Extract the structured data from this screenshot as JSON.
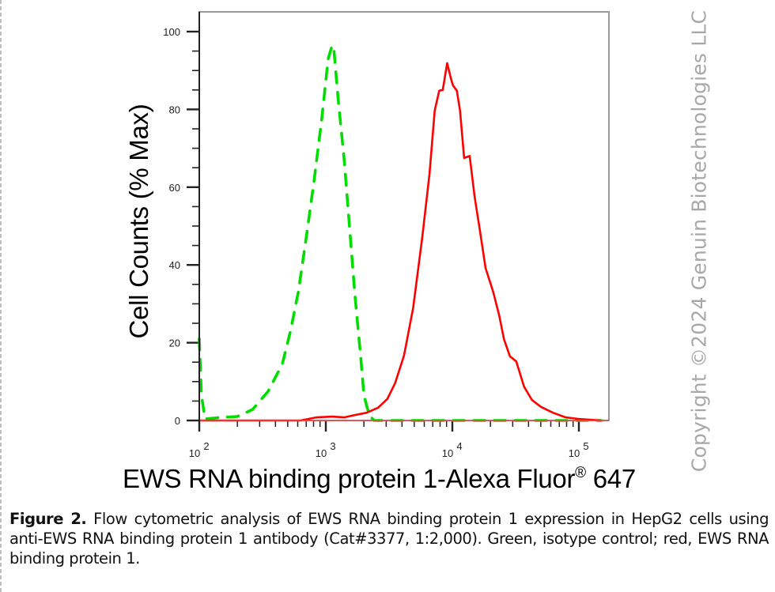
{
  "chart_data": {
    "type": "line",
    "subtype": "flow-cytometry-histogram",
    "title": "",
    "xlabel": "EWS RNA binding protein 1-Alexa Fluor® 647",
    "xlabel_main": "EWS RNA binding protein 1-Alexa Fluor",
    "xlabel_sup": "®",
    "xlabel_tail": " 647",
    "ylabel": "Cell Counts (% Max)",
    "x_scale": "log",
    "xlim": [
      100,
      150000
    ],
    "ylim": [
      0,
      100
    ],
    "x_ticks": [
      {
        "value": 100,
        "base": "10",
        "exp": "2"
      },
      {
        "value": 1000,
        "base": "10",
        "exp": "3"
      },
      {
        "value": 10000,
        "base": "10",
        "exp": "4"
      },
      {
        "value": 100000,
        "base": "10",
        "exp": "5"
      }
    ],
    "y_ticks": [
      0,
      20,
      40,
      60,
      80,
      100
    ],
    "grid": false,
    "legend": "none (described in caption)",
    "series": [
      {
        "name": "Isotype control",
        "color": "#00dd00",
        "style": "dashed",
        "x": [
          100,
          104,
          111,
          149,
          198,
          263,
          350,
          454,
          524,
          606,
          700,
          806,
          929,
          1043,
          1122,
          1161,
          1250,
          1400,
          1550,
          1700,
          1880,
          2000,
          2200,
          2400,
          150000
        ],
        "y": [
          21,
          6.5,
          0.4,
          0.8,
          1,
          2.8,
          7.5,
          14.6,
          22.8,
          33,
          47,
          61.4,
          77.6,
          92.9,
          96.5,
          95,
          82.9,
          66.7,
          48.4,
          32.1,
          16.9,
          6.5,
          1.4,
          0,
          0
        ]
      },
      {
        "name": "EWS RNA binding protein 1",
        "color": "#ff0000",
        "style": "solid",
        "x": [
          100,
          630,
          840,
          1124,
          1395,
          1696,
          2100,
          2590,
          3060,
          3530,
          4150,
          4900,
          5780,
          6600,
          7250,
          7870,
          8400,
          9100,
          9770,
          10100,
          10860,
          11500,
          12400,
          13700,
          15000,
          16600,
          18300,
          21000,
          23500,
          25600,
          28500,
          32000,
          36900,
          42500,
          50200,
          62500,
          78800,
          99000,
          150000
        ],
        "y": [
          0,
          0,
          0.8,
          1,
          0.8,
          1.4,
          2,
          3.3,
          5.5,
          9.6,
          16.7,
          28.9,
          47,
          63.4,
          79.7,
          84.8,
          85,
          91.9,
          87.8,
          86.2,
          84.8,
          79.7,
          67.5,
          68,
          57.5,
          48.4,
          39.2,
          33.1,
          26.9,
          20.9,
          16.5,
          15.2,
          8.7,
          5.3,
          3.5,
          2,
          0.8,
          0.4,
          0
        ]
      }
    ],
    "peaks": {
      "isotype_control": {
        "x": 1122,
        "y": 96.5
      },
      "ews_rna_binding_protein_1": {
        "x": 9100,
        "y": 91.9
      }
    }
  },
  "copyright": "Copyright ©2024 Genuin Biotechnologies LLC",
  "caption": {
    "label": "Figure 2.",
    "text": " Flow cytometric analysis of EWS RNA binding protein 1 expression in HepG2 cells using anti-EWS RNA binding protein 1 antibody (Cat#3377, 1:2,000). Green, isotype control; red, EWS RNA binding protein 1."
  }
}
